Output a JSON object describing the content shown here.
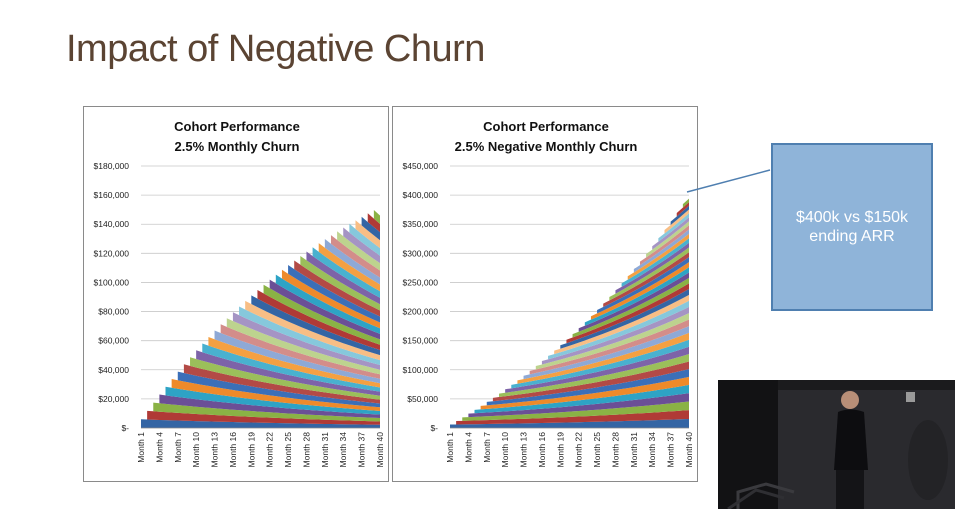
{
  "slide": {
    "title": "Impact of Negative Churn"
  },
  "callout": {
    "text": "$400k vs $150k\nending ARR"
  },
  "palette": [
    "#3465a4",
    "#b03a36",
    "#8ab245",
    "#6b4f96",
    "#2ea3c5",
    "#ee8a2a",
    "#3b6fb8",
    "#b34a46",
    "#9bbf5a",
    "#7d63a8",
    "#49b1cf",
    "#f4a042",
    "#8ea9d6",
    "#d38d8a",
    "#bdd38e",
    "#a594c4",
    "#86c8dc",
    "#f8be85"
  ],
  "chart_data": [
    {
      "type": "area",
      "stacked": true,
      "title": [
        "Cohort Performance",
        "2.5% Monthly Churn"
      ],
      "monthly_churn_rate": 0.025,
      "new_cohort_monthly_revenue": 6000,
      "series_count": 40,
      "series_description": "One stacked series per monthly cohort",
      "x_tick_labels": [
        "Month 1",
        "Month 4",
        "Month 7",
        "Month 10",
        "Month 13",
        "Month 16",
        "Month 19",
        "Month 22",
        "Month 25",
        "Month 28",
        "Month 31",
        "Month 34",
        "Month 37",
        "Month 40"
      ],
      "y_tick_labels": [
        "$-",
        "$20,000",
        "$40,000",
        "$60,000",
        "$80,000",
        "$100,000",
        "$120,000",
        "$140,000",
        "$160,000",
        "$180,000"
      ],
      "ylim": [
        0,
        180000
      ],
      "ending_total": 152000,
      "grid": "horizontal"
    },
    {
      "type": "area",
      "stacked": true,
      "title": [
        "Cohort Performance",
        "2.5% Negative Monthly Churn"
      ],
      "monthly_churn_rate": -0.025,
      "new_cohort_monthly_revenue": 6000,
      "series_count": 40,
      "series_description": "One stacked series per monthly cohort",
      "x_tick_labels": [
        "Month 1",
        "Month 4",
        "Month 7",
        "Month 10",
        "Month 13",
        "Month 16",
        "Month 19",
        "Month 22",
        "Month 25",
        "Month 28",
        "Month 31",
        "Month 34",
        "Month 37",
        "Month 40"
      ],
      "y_tick_labels": [
        "$-",
        "$50,000",
        "$100,000",
        "$150,000",
        "$200,000",
        "$250,000",
        "$300,000",
        "$350,000",
        "$400,000",
        "$450,000"
      ],
      "ylim": [
        0,
        450000
      ],
      "ending_total": 400000,
      "grid": "horizontal"
    }
  ]
}
